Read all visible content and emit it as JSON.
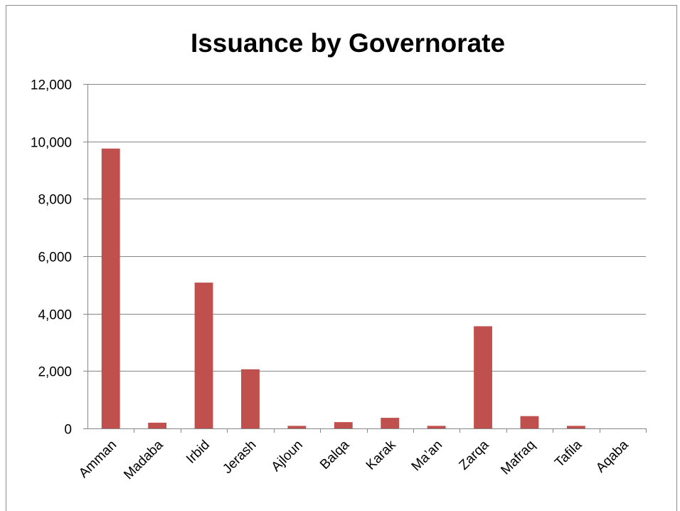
{
  "chart_data": {
    "type": "bar",
    "title": "Issuance by Governorate",
    "xlabel": "",
    "ylabel": "",
    "categories": [
      "Amman",
      "Madaba",
      "Irbid",
      "Jerash",
      "Ajloun",
      "Balqa",
      "Karak",
      "Ma’an",
      "Zarqa",
      "Mafraq",
      "Tafila",
      "Aqaba"
    ],
    "values": [
      9750,
      200,
      5080,
      2060,
      90,
      220,
      370,
      90,
      3560,
      430,
      90,
      0
    ],
    "ylim": [
      0,
      12000
    ],
    "yticks": [
      0,
      2000,
      4000,
      6000,
      8000,
      10000,
      12000
    ],
    "ytick_labels": [
      "0",
      "2,000",
      "4,000",
      "6,000",
      "8,000",
      "10,000",
      "12,000"
    ],
    "grid": true,
    "legend": "none",
    "bar_color": "#c0504d"
  }
}
